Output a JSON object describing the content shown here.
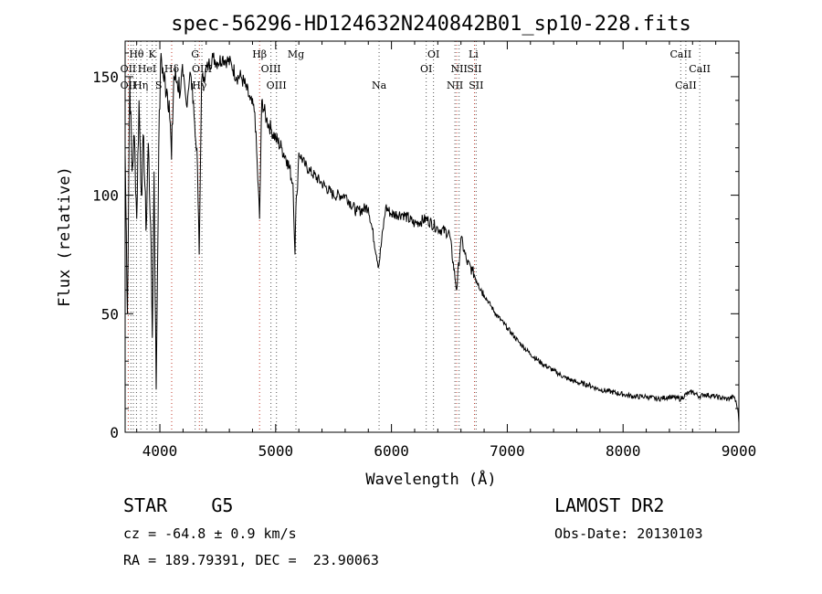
{
  "chart_data": {
    "type": "line",
    "title": "spec-56296-HD124632N240842B01_sp10-228.fits",
    "xlabel": "Wavelength (Å)",
    "ylabel": "Flux (relative)",
    "xlim": [
      3700,
      9000
    ],
    "ylim": [
      0,
      165
    ],
    "xticks": [
      4000,
      5000,
      6000,
      7000,
      8000,
      9000
    ],
    "yticks": [
      0,
      50,
      100,
      150
    ],
    "grid": false,
    "series": [
      {
        "x": [
          3700,
          3720,
          3740,
          3760,
          3780,
          3800,
          3820,
          3840,
          3860,
          3880,
          3900,
          3920,
          3935,
          3950,
          3968,
          3990,
          4010,
          4030,
          4060,
          4080,
          4101,
          4120,
          4150,
          4180,
          4200,
          4230,
          4260,
          4290,
          4305,
          4320,
          4340,
          4360,
          4380,
          4420,
          4460,
          4500,
          4540,
          4580,
          4620,
          4660,
          4700,
          4740,
          4780,
          4820,
          4861,
          4880,
          4920,
          4960,
          5000,
          5050,
          5100,
          5150,
          5167,
          5175,
          5183,
          5200,
          5250,
          5300,
          5400,
          5500,
          5600,
          5700,
          5800,
          5890,
          5950,
          6000,
          6100,
          6200,
          6300,
          6400,
          6500,
          6563,
          6600,
          6650,
          6700,
          6750,
          6800,
          6900,
          7000,
          7100,
          7200,
          7300,
          7400,
          7500,
          7600,
          7700,
          7800,
          7900,
          8000,
          8100,
          8200,
          8300,
          8400,
          8498,
          8542,
          8600,
          8662,
          8700,
          8800,
          8900,
          8960,
          8990,
          9000
        ],
        "y": [
          118,
          50,
          150,
          110,
          125,
          90,
          140,
          100,
          125,
          85,
          122,
          88,
          40,
          110,
          18,
          120,
          160,
          150,
          145,
          140,
          115,
          150,
          148,
          145,
          150,
          138,
          152,
          140,
          125,
          120,
          75,
          148,
          150,
          155,
          158,
          156,
          158,
          157,
          155,
          150,
          150,
          146,
          140,
          135,
          90,
          140,
          132,
          128,
          124,
          120,
          115,
          105,
          75,
          95,
          100,
          118,
          113,
          110,
          105,
          100,
          100,
          93,
          95,
          70,
          95,
          92,
          92,
          88,
          90,
          86,
          84,
          60,
          82,
          72,
          68,
          63,
          58,
          50,
          44,
          38,
          33,
          29,
          26,
          23,
          21,
          20,
          18,
          17,
          16,
          15,
          15,
          14,
          15,
          14,
          16,
          17,
          15,
          16,
          15,
          14,
          15,
          10,
          4
        ]
      }
    ],
    "line_markers": {
      "top": [
        {
          "label": "Hθ",
          "wave": 3798
        },
        {
          "label": "K",
          "wave": 3934
        },
        {
          "label": "G",
          "wave": 4305
        },
        {
          "label": "Hβ",
          "wave": 4861
        },
        {
          "label": "Mg",
          "wave": 5175
        },
        {
          "label": "OI",
          "wave": 6363
        },
        {
          "label": "Li",
          "wave": 6708
        },
        {
          "label": "CaII",
          "wave": 8498
        }
      ],
      "middle": [
        {
          "label": "OII",
          "wave": 3727
        },
        {
          "label": "HeI",
          "wave": 3889
        },
        {
          "label": "Hδ",
          "wave": 4102
        },
        {
          "label": "OIII",
          "wave": 4363
        },
        {
          "label": "OIII",
          "wave": 4959
        },
        {
          "label": "OI",
          "wave": 6300
        },
        {
          "label": "NII",
          "wave": 6584
        },
        {
          "label": "SII",
          "wave": 6717
        },
        {
          "label": "CaII",
          "wave": 8662
        }
      ],
      "bottom": [
        {
          "label": "OII",
          "wave": 3727
        },
        {
          "label": "Hη",
          "wave": 3835
        },
        {
          "label": "S",
          "wave": 3990
        },
        {
          "label": "Hγ",
          "wave": 4341
        },
        {
          "label": "OIII",
          "wave": 5007
        },
        {
          "label": "Na",
          "wave": 5893
        },
        {
          "label": "NII",
          "wave": 6548
        },
        {
          "label": "SII",
          "wave": 6731
        },
        {
          "label": "CaII",
          "wave": 8542
        }
      ],
      "lines": [
        3727,
        3750,
        3771,
        3798,
        3835,
        3889,
        3934,
        3968,
        4102,
        4305,
        4341,
        4363,
        4861,
        4959,
        5007,
        5175,
        5893,
        6300,
        6363,
        6548,
        6584,
        6717,
        6731,
        8498,
        8542,
        8662
      ],
      "red_lines": [
        3727,
        4102,
        4341,
        4861,
        6563,
        6717
      ]
    }
  },
  "info": {
    "obj_class": "STAR    G5",
    "survey": "LAMOST DR2",
    "redshift": "cz = -64.8 ± 0.9 km/s",
    "obs_date": "Obs-Date: 20130103",
    "coords": "RA = 189.79391, DEC =  23.90063"
  }
}
